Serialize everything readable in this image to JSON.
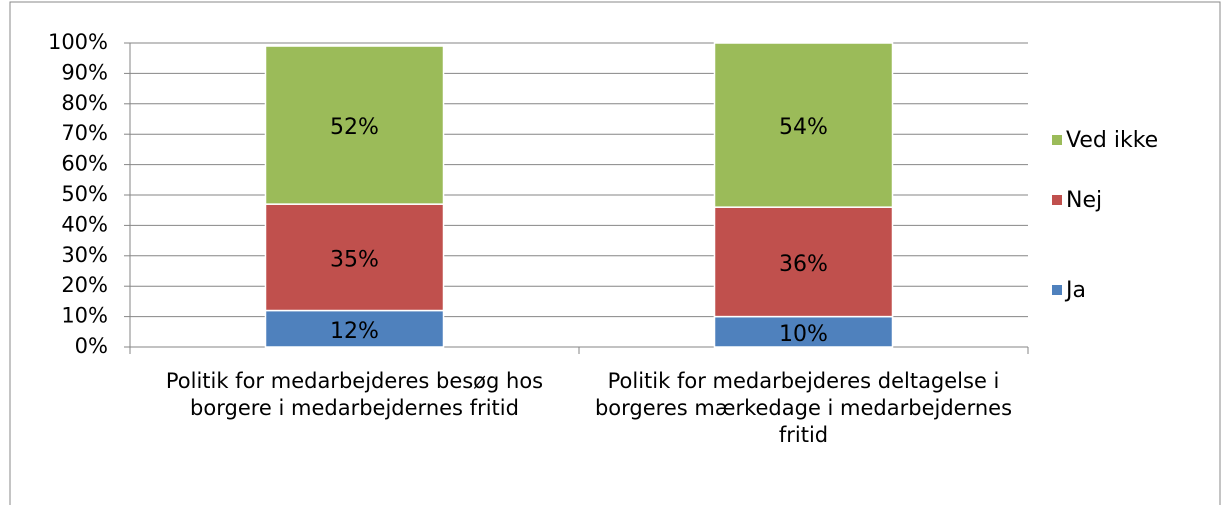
{
  "chart_data": {
    "type": "stacked_bar",
    "categories": [
      "Politik for medarbejderes besøg hos borgere i medarbejdernes fritid",
      "Politik for medarbejderes deltagelse i borgeres mærkedage i medarbejdernes fritid"
    ],
    "series": [
      {
        "name": "Ja",
        "color": "#4f81bd",
        "values": [
          12,
          10
        ],
        "value_labels": [
          "12%",
          "10%"
        ]
      },
      {
        "name": "Nej",
        "color": "#c0504d",
        "values": [
          35,
          36
        ],
        "value_labels": [
          "35%",
          "36%"
        ]
      },
      {
        "name": "Ved ikke",
        "color": "#9bbb59",
        "values": [
          52,
          54
        ],
        "value_labels": [
          "52%",
          "54%"
        ]
      }
    ],
    "ylim": [
      0,
      100
    ],
    "yticks": [
      {
        "value": 0,
        "label": "0%"
      },
      {
        "value": 10,
        "label": "10%"
      },
      {
        "value": 20,
        "label": "20%"
      },
      {
        "value": 30,
        "label": "30%"
      },
      {
        "value": 40,
        "label": "40%"
      },
      {
        "value": 50,
        "label": "50%"
      },
      {
        "value": 60,
        "label": "60%"
      },
      {
        "value": 70,
        "label": "70%"
      },
      {
        "value": 80,
        "label": "80%"
      },
      {
        "value": 90,
        "label": "90%"
      },
      {
        "value": 100,
        "label": "100%"
      }
    ],
    "grid": true,
    "legend": "right"
  }
}
